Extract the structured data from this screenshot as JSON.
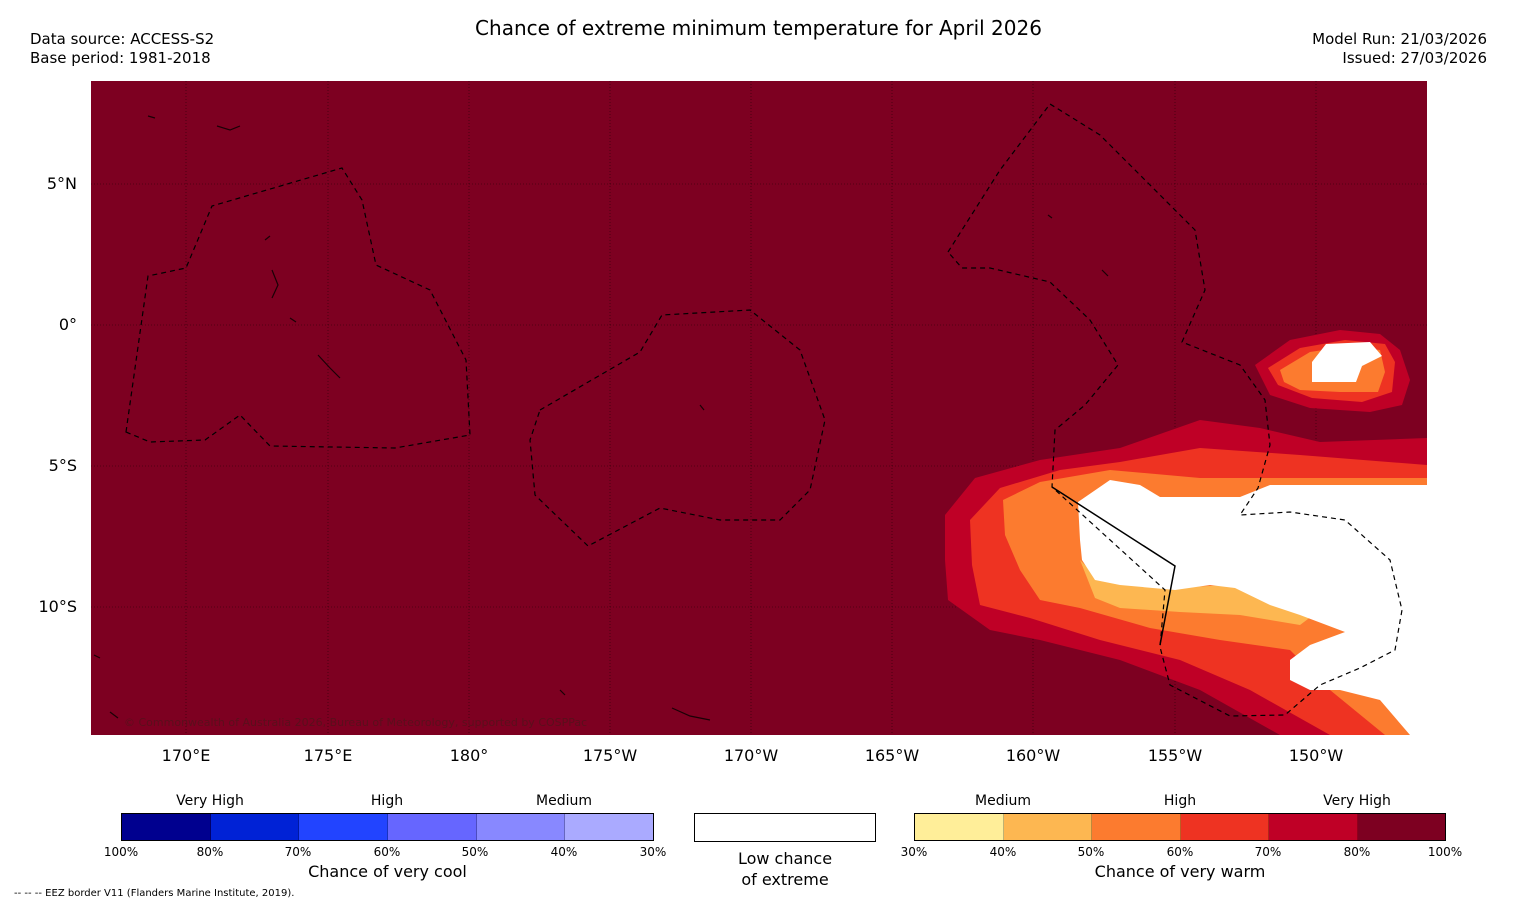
{
  "header": {
    "title": "Chance of extreme minimum temperature for April 2026",
    "data_source": "Data source: ACCESS-S2",
    "base_period": "Base period: 1981-2018",
    "model_run": "Model Run: 21/03/2026",
    "issued": "Issued: 27/03/2026"
  },
  "map": {
    "background_color": "#7d0021",
    "y_labels": [
      "5°N",
      "0°",
      "5°S",
      "10°S"
    ],
    "x_labels": [
      "170°E",
      "175°E",
      "180°",
      "175°W",
      "170°W",
      "165°W",
      "160°W",
      "155°W",
      "150°W"
    ],
    "credit": "© Commonwealth of Australia 2026, Bureau of Meteorology, supported by COSPPac"
  },
  "legend_cool": {
    "headings": [
      "Very High",
      "High",
      "Medium"
    ],
    "ticks": [
      "100%",
      "80%",
      "70%",
      "60%",
      "50%",
      "40%",
      "30%"
    ],
    "colors": [
      "#00008f",
      "#0022d6",
      "#2244ff",
      "#6666ff",
      "#8888ff",
      "#aaaaff"
    ],
    "title": "Chance of very cool"
  },
  "legend_low": {
    "line1": "Low chance",
    "line2": "of extreme",
    "color": "#ffffff"
  },
  "legend_warm": {
    "headings": [
      "Medium",
      "High",
      "Very High"
    ],
    "ticks": [
      "30%",
      "40%",
      "50%",
      "60%",
      "70%",
      "80%",
      "100%"
    ],
    "colors": [
      "#ffee99",
      "#fdb751",
      "#fc7b2f",
      "#ee3322",
      "#bf0026",
      "#7d0021"
    ],
    "title": "Chance of very warm"
  },
  "footer": {
    "eez_note": "--  --  -- EEZ border V11 (Flanders Marine Institute, 2019)."
  }
}
